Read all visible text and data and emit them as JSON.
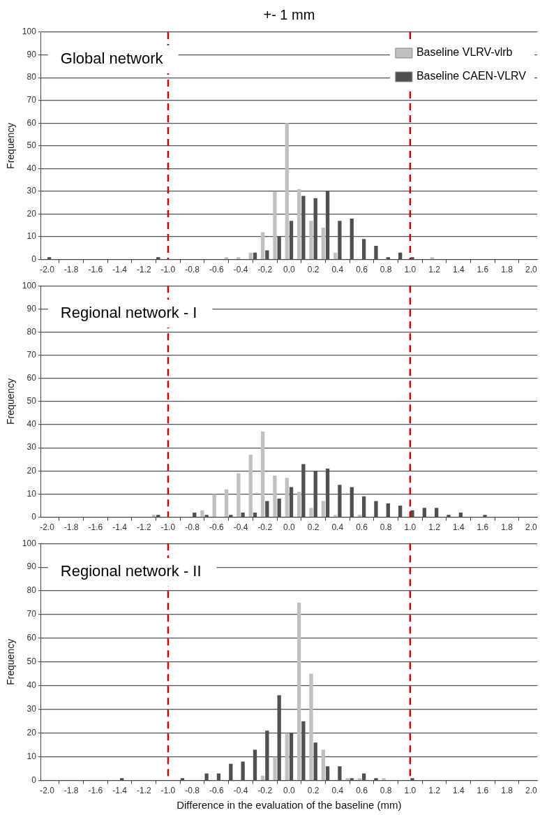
{
  "chart_data": [
    {
      "type": "bar",
      "title": "Global network",
      "ylabel": "Frequency",
      "annotations": [
        "+- 1 mm"
      ],
      "x": [
        -2.0,
        -1.9,
        -1.8,
        -1.7,
        -1.6,
        -1.5,
        -1.4,
        -1.3,
        -1.2,
        -1.1,
        -1.0,
        -0.9,
        -0.8,
        -0.7,
        -0.6,
        -0.5,
        -0.4,
        -0.3,
        -0.2,
        -0.1,
        0.0,
        0.1,
        0.2,
        0.3,
        0.4,
        0.5,
        0.6,
        0.7,
        0.8,
        0.9,
        1.0,
        1.1,
        1.2,
        1.3,
        1.4,
        1.5,
        1.6,
        1.7,
        1.8,
        1.9,
        2.0
      ],
      "series": [
        {
          "name": "Baseline VLRV-vlrb",
          "color": "#c0c0c0",
          "values": [
            0,
            0,
            0,
            0,
            0,
            0,
            0,
            0,
            0,
            0,
            0,
            0,
            0,
            0,
            0,
            1,
            1,
            3,
            12,
            30,
            60,
            31,
            17,
            14,
            3,
            0,
            0,
            0,
            0,
            0,
            0,
            0,
            1,
            0,
            0,
            0,
            0,
            0,
            0,
            0,
            0
          ]
        },
        {
          "name": "Baseline CAEN-VLRV",
          "color": "#505050",
          "values": [
            1,
            0,
            0,
            0,
            0,
            0,
            0,
            0,
            0,
            1,
            0,
            0,
            0,
            0,
            0,
            0,
            0,
            3,
            4,
            10,
            17,
            28,
            27,
            30,
            17,
            18,
            9,
            6,
            1,
            3,
            1,
            0,
            0,
            0,
            0,
            0,
            0,
            0,
            0,
            0,
            0
          ]
        }
      ],
      "xlim": [
        -2.05,
        2.05
      ],
      "xticks": [
        {
          "value": -2,
          "label": "-2.0"
        },
        -1.8,
        -1.6,
        -1.4,
        -1.2,
        {
          "value": -1,
          "label": "-1.0"
        },
        -0.8,
        -0.6,
        -0.4,
        -0.2,
        {
          "value": 0,
          "label": "0.0"
        },
        0.2,
        0.4,
        0.6,
        0.8,
        {
          "value": 1,
          "label": "1.0"
        },
        1.2,
        1.4,
        1.6,
        1.8,
        {
          "value": 2,
          "label": "2.0"
        }
      ],
      "ylim": [
        0,
        100
      ],
      "yticks": [
        0,
        10,
        20,
        30,
        40,
        50,
        60,
        70,
        80,
        90,
        100
      ],
      "grid": "y",
      "legend": "top right",
      "ref_lines": [
        {
          "axis": "x",
          "value": -1,
          "color": "#cc0000",
          "line_style": "dashed"
        },
        {
          "axis": "x",
          "value": 1,
          "color": "#cc0000",
          "line_style": "dashed"
        }
      ]
    },
    {
      "type": "bar",
      "title": "Regional network - I",
      "ylabel": "Frequency",
      "x": [
        -2.0,
        -1.9,
        -1.8,
        -1.7,
        -1.6,
        -1.5,
        -1.4,
        -1.3,
        -1.2,
        -1.1,
        -1.0,
        -0.9,
        -0.8,
        -0.7,
        -0.6,
        -0.5,
        -0.4,
        -0.3,
        -0.2,
        -0.1,
        0.0,
        0.1,
        0.2,
        0.3,
        0.4,
        0.5,
        0.6,
        0.7,
        0.8,
        0.9,
        1.0,
        1.1,
        1.2,
        1.3,
        1.4,
        1.5,
        1.6,
        1.7,
        1.8,
        1.9,
        2.0
      ],
      "series": [
        {
          "color": "#c0c0c0",
          "values": [
            0,
            0,
            0,
            0,
            0,
            0,
            0,
            0,
            0,
            1,
            0,
            0,
            0,
            3,
            10,
            12,
            19,
            27,
            37,
            18,
            17,
            11,
            4,
            7,
            1,
            0,
            1,
            0,
            0,
            0,
            0,
            0,
            0,
            0,
            0,
            0,
            0,
            0,
            0,
            0,
            0
          ]
        },
        {
          "color": "#505050",
          "values": [
            0,
            0,
            0,
            0,
            0,
            0,
            0,
            0,
            0,
            1,
            0,
            0,
            2,
            1,
            0,
            1,
            2,
            2,
            7,
            8,
            13,
            23,
            20,
            21,
            14,
            13,
            9,
            7,
            6,
            5,
            3,
            4,
            4,
            1,
            2,
            0,
            1,
            0,
            0,
            0,
            0
          ]
        }
      ],
      "xlim": [
        -2.05,
        2.05
      ],
      "xticks": [
        {
          "value": -2,
          "label": "-2.0"
        },
        -1.8,
        -1.6,
        -1.4,
        -1.2,
        {
          "value": -1,
          "label": "-1.0"
        },
        -0.8,
        -0.6,
        -0.4,
        -0.2,
        {
          "value": 0,
          "label": "0.0"
        },
        0.2,
        0.4,
        0.6,
        0.8,
        {
          "value": 1,
          "label": "1.0"
        },
        1.2,
        1.4,
        1.6,
        1.8,
        {
          "value": 2,
          "label": "2.0"
        }
      ],
      "ylim": [
        0,
        100
      ],
      "yticks": [
        0,
        10,
        20,
        30,
        40,
        50,
        60,
        70,
        80,
        90,
        100
      ],
      "grid": "y",
      "ref_lines": [
        {
          "axis": "x",
          "value": -1,
          "color": "#cc0000",
          "line_style": "dashed"
        },
        {
          "axis": "x",
          "value": 1,
          "color": "#cc0000",
          "line_style": "dashed"
        }
      ]
    },
    {
      "type": "bar",
      "title": "Regional network - II",
      "ylabel": "Frequency",
      "xlabel": "Difference in the evaluation of the baseline (mm)",
      "x": [
        -2.0,
        -1.9,
        -1.8,
        -1.7,
        -1.6,
        -1.5,
        -1.4,
        -1.3,
        -1.2,
        -1.1,
        -1.0,
        -0.9,
        -0.8,
        -0.7,
        -0.6,
        -0.5,
        -0.4,
        -0.3,
        -0.2,
        -0.1,
        0.0,
        0.1,
        0.2,
        0.3,
        0.4,
        0.5,
        0.6,
        0.7,
        0.8,
        0.9,
        1.0,
        1.1,
        1.2,
        1.3,
        1.4,
        1.5,
        1.6,
        1.7,
        1.8,
        1.9,
        2.0
      ],
      "series": [
        {
          "color": "#c0c0c0",
          "values": [
            0,
            0,
            0,
            0,
            0,
            0,
            0,
            0,
            0,
            0,
            0,
            0,
            0,
            0,
            0,
            0,
            0,
            0,
            2,
            10,
            20,
            75,
            45,
            13,
            0,
            1,
            1,
            0,
            1,
            0,
            0,
            0,
            0,
            0,
            0,
            0,
            0,
            0,
            0,
            0,
            0
          ]
        },
        {
          "color": "#505050",
          "values": [
            0,
            0,
            0,
            0,
            0,
            0,
            1,
            0,
            0,
            0,
            0,
            1,
            0,
            3,
            3,
            7,
            8,
            13,
            21,
            36,
            20,
            25,
            16,
            6,
            6,
            1,
            3,
            1,
            0,
            0,
            1,
            0,
            0,
            0,
            0,
            0,
            0,
            0,
            0,
            0,
            0
          ]
        }
      ],
      "xlim": [
        -2.05,
        2.05
      ],
      "xticks": [
        {
          "value": -2,
          "label": "-2.0"
        },
        -1.8,
        -1.6,
        -1.4,
        -1.2,
        {
          "value": -1,
          "label": "-1.0"
        },
        -0.8,
        -0.6,
        -0.4,
        -0.2,
        {
          "value": 0,
          "label": "0.0"
        },
        0.2,
        0.4,
        0.6,
        0.8,
        {
          "value": 1,
          "label": "1.0"
        },
        1.2,
        1.4,
        1.6,
        1.8,
        {
          "value": 2,
          "label": "2.0"
        }
      ],
      "ylim": [
        0,
        100
      ],
      "yticks": [
        0,
        10,
        20,
        30,
        40,
        50,
        60,
        70,
        80,
        90,
        100
      ],
      "grid": "y",
      "ref_lines": [
        {
          "axis": "x",
          "value": -1,
          "color": "#cc0000",
          "line_style": "dashed"
        },
        {
          "axis": "x",
          "value": 1,
          "color": "#cc0000",
          "line_style": "dashed"
        }
      ]
    }
  ]
}
